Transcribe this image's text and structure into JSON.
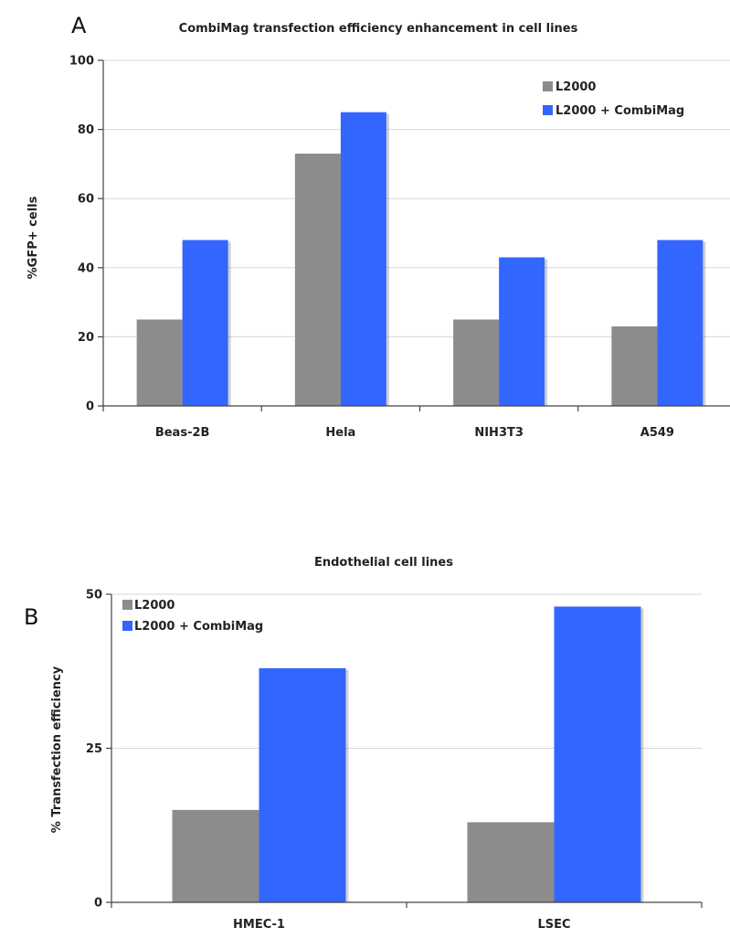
{
  "panels": [
    {
      "letter": "A",
      "legend_items": [
        "L2000",
        "L2000 + CombiMag"
      ]
    },
    {
      "letter": "B",
      "legend_items": [
        "L2000",
        "L2000 + CombiMag"
      ]
    }
  ],
  "colors": {
    "l2000": "#8c8c8c",
    "combimag": "#3366ff"
  },
  "chart_data": [
    {
      "type": "bar",
      "title": "CombiMag transfection efficiency enhancement in cell lines",
      "xlabel": "",
      "ylabel": "%GFP+ cells",
      "categories": [
        "Beas-2B",
        "Hela",
        "NIH3T3",
        "A549"
      ],
      "series": [
        {
          "name": "L2000",
          "values": [
            25,
            73,
            25,
            23
          ]
        },
        {
          "name": "L2000 + CombiMag",
          "values": [
            48,
            85,
            43,
            48
          ]
        }
      ],
      "ylim": [
        0,
        100
      ],
      "yticks": [
        "0",
        "20",
        "40",
        "60",
        "80",
        "100"
      ],
      "ytick_values": [
        0,
        20,
        40,
        60,
        80,
        100
      ],
      "grid": true,
      "legend": "top-right"
    },
    {
      "type": "bar",
      "title": "Endothelial cell lines",
      "xlabel": "",
      "ylabel": "% Transfection efficiency",
      "categories": [
        "HMEC-1",
        "LSEC"
      ],
      "series": [
        {
          "name": "L2000",
          "values": [
            15,
            13
          ]
        },
        {
          "name": "L2000 + CombiMag",
          "values": [
            38,
            48
          ]
        }
      ],
      "ylim": [
        0,
        50
      ],
      "yticks": [
        "0",
        "25",
        "50"
      ],
      "ytick_values": [
        0,
        25,
        50
      ],
      "grid": true,
      "legend": "top-left"
    }
  ]
}
